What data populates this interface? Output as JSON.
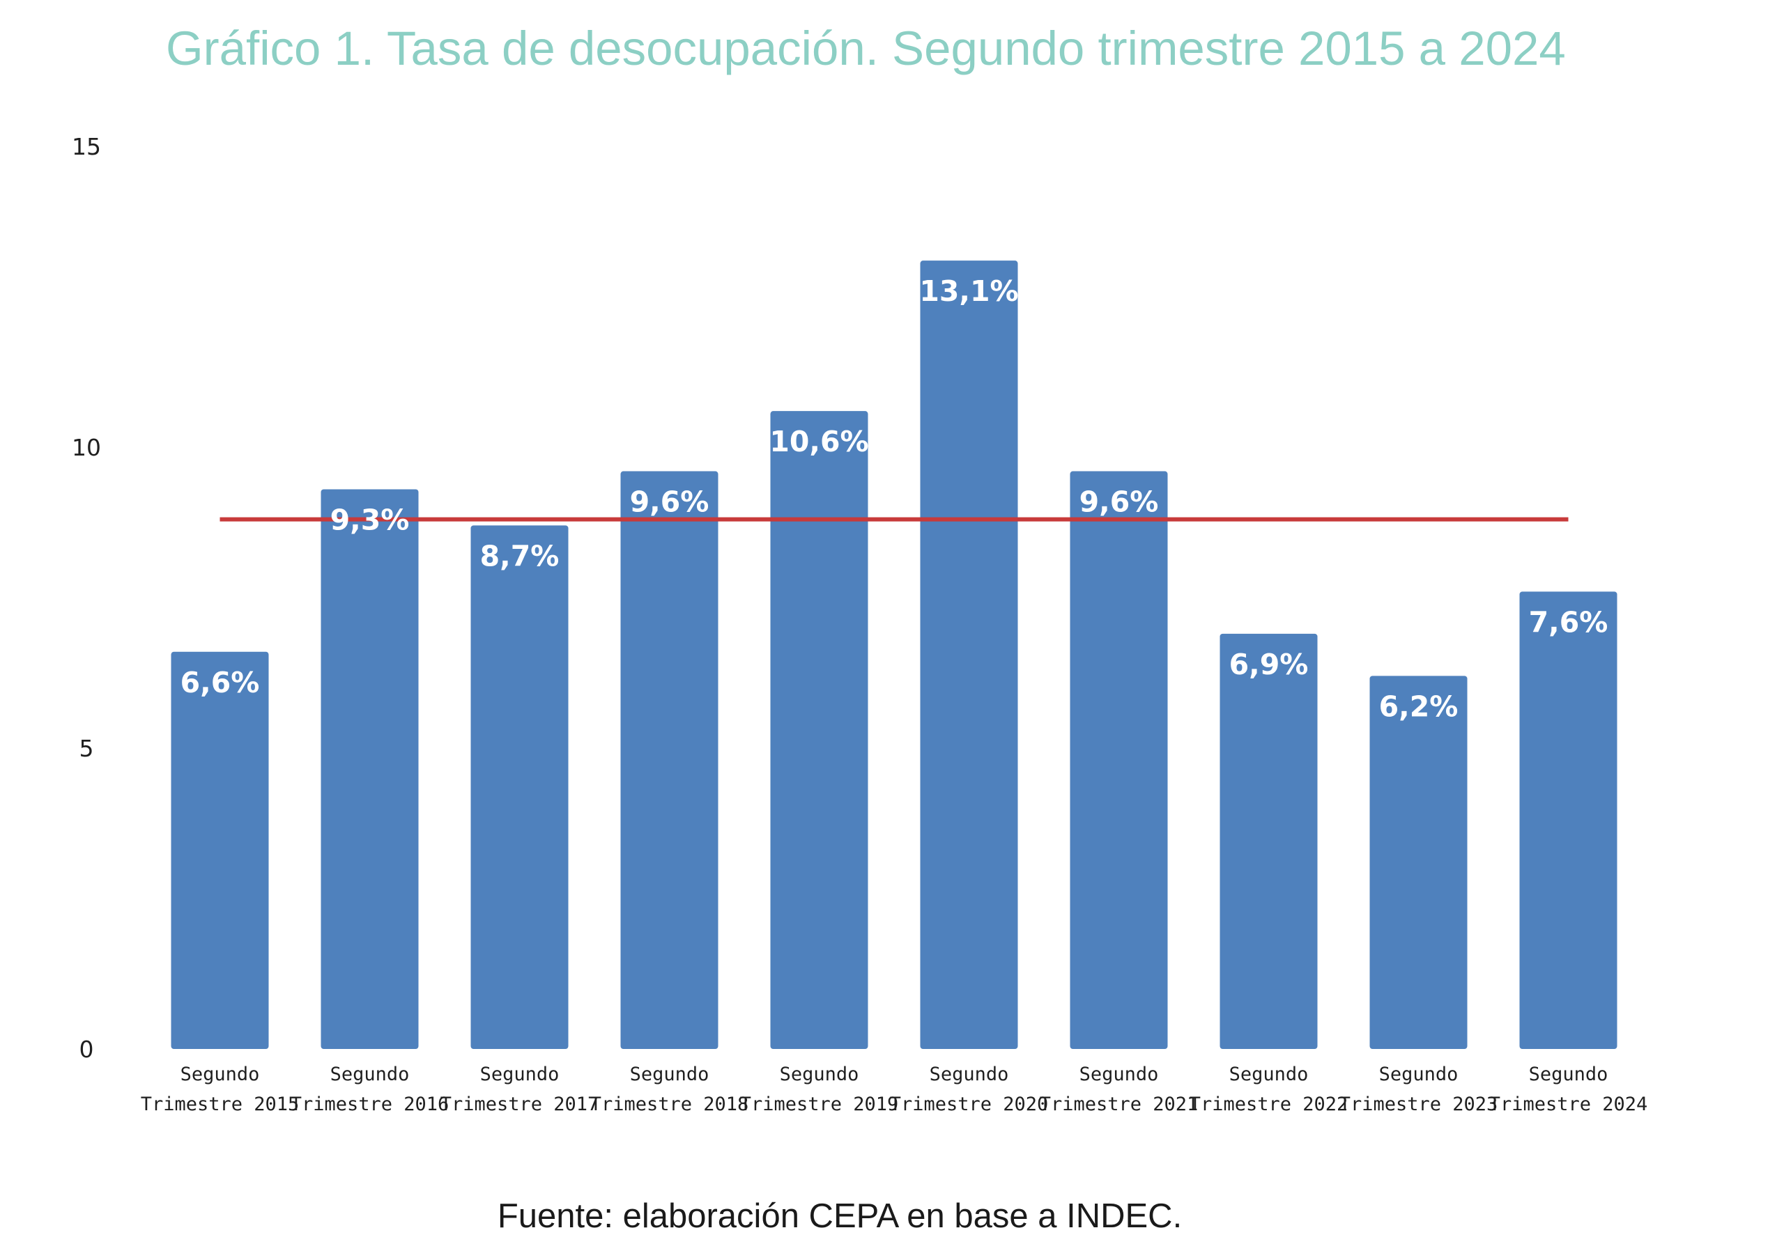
{
  "chart_data": {
    "type": "bar",
    "title": "Gráfico 1. Tasa de desocupación. Segundo trimestre 2015 a 2024",
    "categories": [
      [
        "Segundo",
        "Trimestre 2015"
      ],
      [
        "Segundo",
        "Trimestre 2016"
      ],
      [
        "Segundo",
        "Trimestre 2017"
      ],
      [
        "Segundo",
        "Trimestre 2018"
      ],
      [
        "Segundo",
        "Trimestre 2019"
      ],
      [
        "Segundo",
        "Trimestre 2020"
      ],
      [
        "Segundo",
        "Trimestre 2021"
      ],
      [
        "Segundo",
        "Trimestre 2022"
      ],
      [
        "Segundo",
        "Trimestre 2023"
      ],
      [
        "Segundo",
        "Trimestre 2024"
      ]
    ],
    "values": [
      6.6,
      9.3,
      8.7,
      9.6,
      10.6,
      13.1,
      9.6,
      6.9,
      6.2,
      7.6
    ],
    "data_labels": [
      "6,6%",
      "9,3%",
      "8,7%",
      "9,6%",
      "10,6%",
      "13,1%",
      "9,6%",
      "6,9%",
      "6,2%",
      "7,6%"
    ],
    "reference_line": {
      "value": 8.8,
      "color": "#c83a3a"
    },
    "ylim": [
      0,
      15
    ],
    "yticks": [
      0,
      5,
      10,
      15
    ],
    "grid": false,
    "legend": "none",
    "xlabel": "",
    "ylabel": "",
    "bar_color": "#4f81bd",
    "title_color": "#8ccfc4"
  },
  "source_note": "Fuente: elaboración CEPA en base a INDEC."
}
